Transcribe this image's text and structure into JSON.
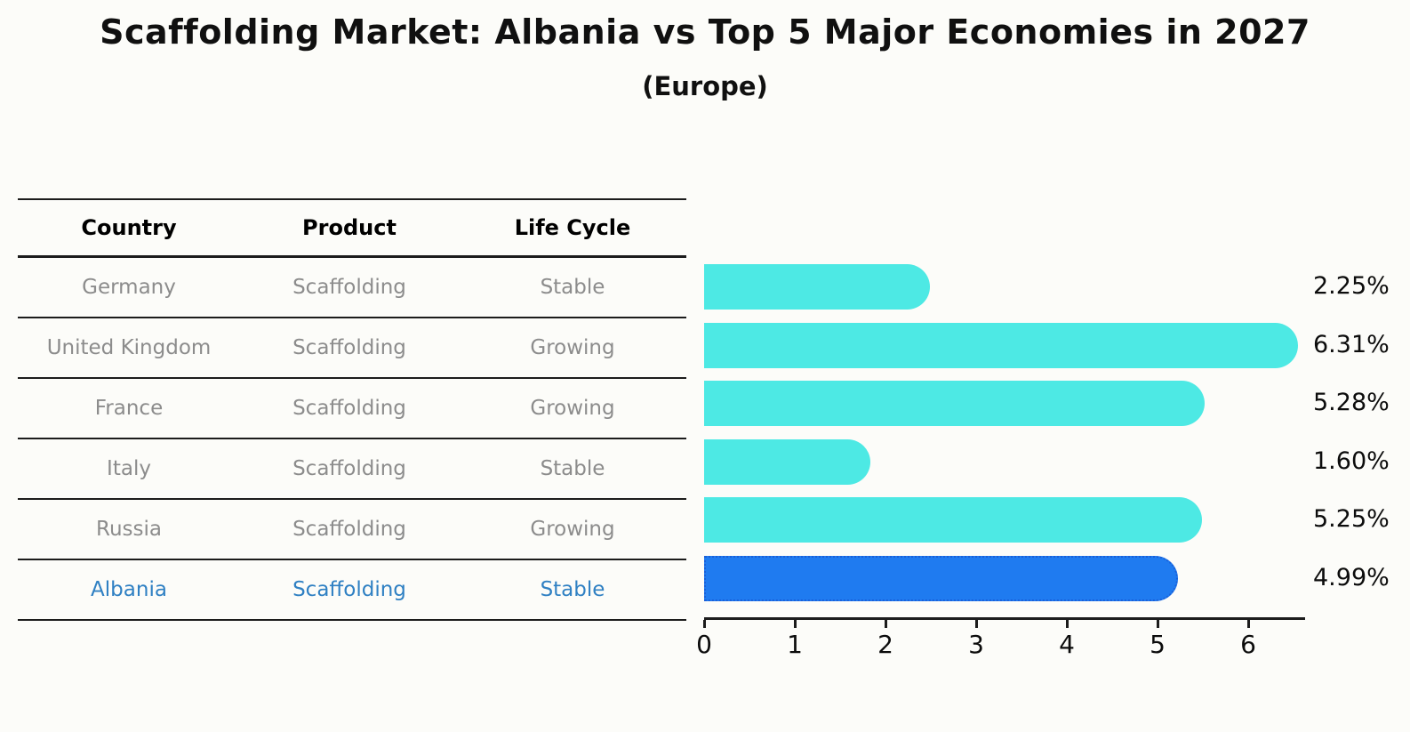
{
  "title": "Scaffolding Market: Albania vs Top 5 Major Economies in 2027",
  "subtitle": "(Europe)",
  "table": {
    "headers": [
      "Country",
      "Product",
      "Life Cycle"
    ],
    "rows": [
      {
        "country": "Germany",
        "product": "Scaffolding",
        "life_cycle": "Stable",
        "highlighted": false
      },
      {
        "country": "United Kingdom",
        "product": "Scaffolding",
        "life_cycle": "Growing",
        "highlighted": false
      },
      {
        "country": "France",
        "product": "Scaffolding",
        "life_cycle": "Growing",
        "highlighted": false
      },
      {
        "country": "Italy",
        "product": "Scaffolding",
        "life_cycle": "Stable",
        "highlighted": false
      },
      {
        "country": "Russia",
        "product": "Scaffolding",
        "life_cycle": "Growing",
        "highlighted": false
      },
      {
        "country": "Albania",
        "product": "Scaffolding",
        "life_cycle": "Stable",
        "highlighted": true
      }
    ]
  },
  "chart_data": {
    "type": "bar",
    "orientation": "horizontal",
    "title": "Scaffolding Market: Albania vs Top 5 Major Economies in 2027",
    "subtitle": "(Europe)",
    "categories": [
      "Germany",
      "United Kingdom",
      "France",
      "Italy",
      "Russia",
      "Albania"
    ],
    "values": [
      2.25,
      6.31,
      5.28,
      1.6,
      5.25,
      4.99
    ],
    "value_labels": [
      "2.25%",
      "6.31%",
      "5.28%",
      "1.60%",
      "5.25%",
      "4.99%"
    ],
    "highlight_index": 5,
    "xlabel": "",
    "ylabel": "",
    "xlim": [
      0,
      6.6
    ],
    "x_ticks": [
      "0",
      "1",
      "2",
      "3",
      "4",
      "5",
      "6"
    ],
    "grid": false,
    "legend": false,
    "colors": {
      "bar_default": "#4de9e4",
      "bar_highlight": "#1f7bf0",
      "bar_highlight_border": "#1a5fd8",
      "highlight_text": "#2f80c3",
      "table_text": "#8c8c8c",
      "axis_text": "#0c0c0c"
    }
  }
}
